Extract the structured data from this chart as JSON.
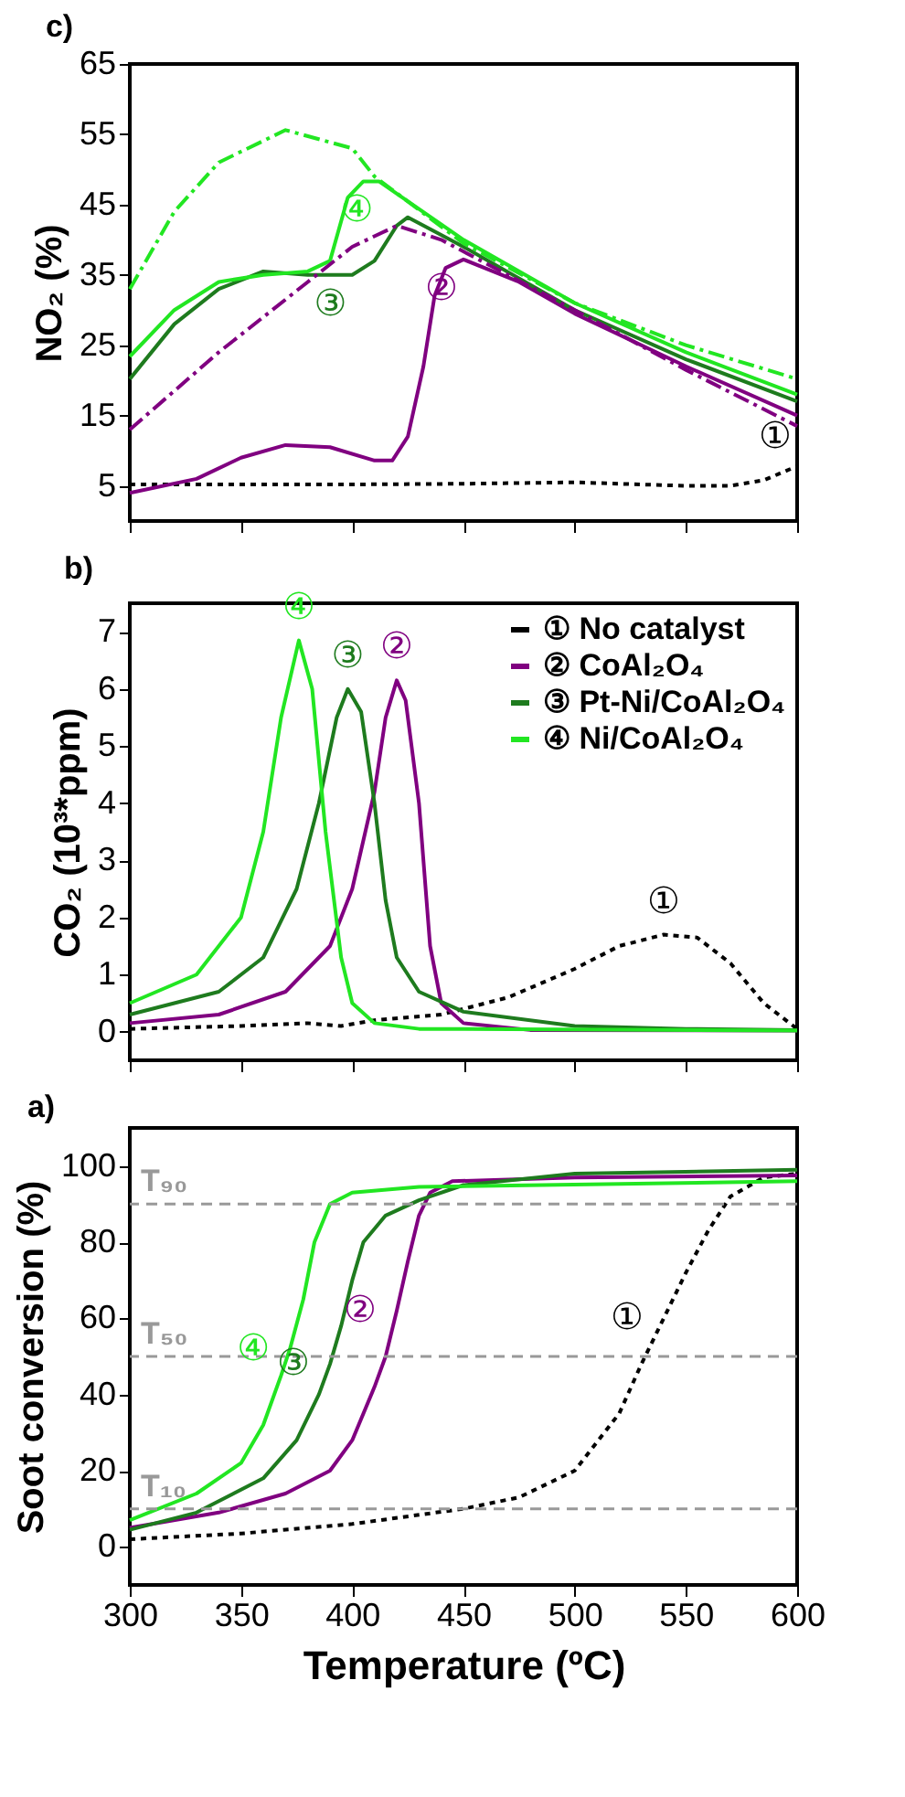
{
  "chart_data": [
    {
      "type": "line",
      "title": "c)",
      "ylabel": "NO₂ (%)",
      "xlim": [
        300,
        600
      ],
      "xticks": [
        300,
        350,
        400,
        450,
        500,
        550,
        600
      ],
      "ylim": [
        0,
        65
      ],
      "yticks": [
        5,
        15,
        25,
        35,
        45,
        55,
        65
      ],
      "tick_labels": "y",
      "series": [
        {
          "color": "#000000",
          "line_style": "dotted",
          "x": [
            300,
            350,
            400,
            450,
            500,
            550,
            570,
            585,
            600
          ],
          "values": [
            5.2,
            5.2,
            5.2,
            5.3,
            5.5,
            5.0,
            5.0,
            5.8,
            7.8
          ]
        },
        {
          "color": "#800080",
          "line_style": "solid",
          "x": [
            300,
            330,
            350,
            370,
            390,
            410,
            418,
            425,
            432,
            437,
            442,
            450,
            475,
            500,
            550,
            600
          ],
          "values": [
            4,
            6,
            9,
            10.8,
            10.5,
            8.6,
            8.6,
            12,
            22,
            32,
            36,
            37.2,
            34,
            29.5,
            22,
            15
          ]
        },
        {
          "color": "#1e7b1e",
          "line_style": "solid",
          "x": [
            300,
            320,
            340,
            360,
            380,
            400,
            410,
            420,
            425,
            450,
            500,
            550,
            600
          ],
          "values": [
            20.2,
            28,
            33,
            35.5,
            35,
            35,
            37,
            42,
            43.2,
            39,
            30,
            23,
            17
          ]
        },
        {
          "color": "#22e622",
          "line_style": "solid",
          "x": [
            300,
            320,
            340,
            360,
            380,
            390,
            398,
            405,
            412,
            450,
            500,
            550,
            600
          ],
          "values": [
            23.4,
            30,
            34,
            35,
            35.5,
            37,
            46,
            48.3,
            48.3,
            40,
            31,
            24,
            18
          ]
        },
        {
          "color": "#22e622",
          "line_style": "dashed",
          "x": [
            300,
            320,
            340,
            370,
            400,
            410,
            450,
            500,
            550,
            600
          ],
          "values": [
            33,
            44,
            51,
            55.6,
            53,
            49,
            39.5,
            31,
            25,
            20.2
          ]
        },
        {
          "color": "#800080",
          "line_style": "dashed",
          "x": [
            300,
            340,
            380,
            400,
            420,
            440,
            470,
            500,
            550,
            600
          ],
          "values": [
            13,
            24,
            34,
            39,
            42,
            40,
            35,
            30,
            21.5,
            13.5
          ]
        }
      ],
      "annotations": [
        {
          "text": "①",
          "x": 600,
          "y": 7.8
        },
        {
          "text": "②",
          "x": 450,
          "y": 37.2
        },
        {
          "text": "③",
          "x": 400,
          "y": 35
        },
        {
          "text": "④",
          "x": 412,
          "y": 48.3
        }
      ]
    },
    {
      "type": "line",
      "title": "b)",
      "ylabel": "CO₂ (10³*ppm)",
      "xlim": [
        300,
        600
      ],
      "xticks": [
        300,
        350,
        400,
        450,
        500,
        550,
        600
      ],
      "ylim": [
        -0.5,
        7.5
      ],
      "yticks": [
        0,
        1,
        2,
        3,
        4,
        5,
        6,
        7
      ],
      "tick_labels": "y",
      "legend": "top right",
      "series": [
        {
          "name": "① No catalyst",
          "color": "#000000",
          "line_style": "dotted",
          "x": [
            300,
            350,
            380,
            395,
            410,
            440,
            470,
            500,
            520,
            540,
            555,
            570,
            585,
            600
          ],
          "values": [
            0.05,
            0.1,
            0.15,
            0.1,
            0.2,
            0.3,
            0.6,
            1.1,
            1.5,
            1.7,
            1.65,
            1.2,
            0.5,
            0.05
          ]
        },
        {
          "name": "② CoAl₂O₄",
          "color": "#800080",
          "line_style": "solid",
          "x": [
            300,
            340,
            370,
            390,
            400,
            410,
            415,
            420,
            424,
            430,
            435,
            440,
            450,
            480,
            600
          ],
          "values": [
            0.15,
            0.3,
            0.7,
            1.5,
            2.5,
            4.2,
            5.5,
            6.15,
            5.8,
            4,
            1.5,
            0.5,
            0.15,
            0.03,
            0.02
          ]
        },
        {
          "name": "③ Pt-Ni/CoAl₂O₄",
          "color": "#1e7b1e",
          "line_style": "solid",
          "x": [
            300,
            340,
            360,
            375,
            385,
            393,
            398,
            404,
            410,
            415,
            420,
            430,
            450,
            500,
            550,
            600
          ],
          "values": [
            0.3,
            0.7,
            1.3,
            2.5,
            4,
            5.5,
            6.0,
            5.6,
            4,
            2.3,
            1.3,
            0.7,
            0.35,
            0.1,
            0.05,
            0.03
          ]
        },
        {
          "name": "④ Ni/CoAl₂O₄",
          "color": "#22e622",
          "line_style": "solid",
          "x": [
            300,
            330,
            350,
            360,
            368,
            376,
            382,
            388,
            395,
            400,
            410,
            430,
            600
          ],
          "values": [
            0.5,
            1,
            2,
            3.5,
            5.5,
            6.85,
            6,
            3.5,
            1.3,
            0.5,
            0.15,
            0.05,
            0.02
          ]
        }
      ],
      "annotations": [
        {
          "text": "①",
          "x": 540,
          "y": 1.7
        },
        {
          "text": "②",
          "x": 420,
          "y": 6.15
        },
        {
          "text": "③",
          "x": 398,
          "y": 6.0
        },
        {
          "text": "④",
          "x": 376,
          "y": 6.85
        }
      ]
    },
    {
      "type": "line",
      "title": "a)",
      "xlabel": "Temperature (ºC)",
      "ylabel": "Soot conversion (%)",
      "xlim": [
        300,
        600
      ],
      "xticks": [
        300,
        350,
        400,
        450,
        500,
        550,
        600
      ],
      "ylim": [
        -10,
        110
      ],
      "yticks": [
        0,
        20,
        40,
        60,
        80,
        100
      ],
      "series": [
        {
          "color": "#000000",
          "line_style": "dotted",
          "x": [
            300,
            350,
            400,
            450,
            475,
            500,
            520,
            530,
            540,
            550,
            560,
            570,
            585,
            600
          ],
          "values": [
            2,
            3.5,
            6,
            10,
            13,
            20,
            35,
            48,
            60,
            72,
            83,
            92,
            97,
            98
          ]
        },
        {
          "color": "#800080",
          "line_style": "solid",
          "x": [
            300,
            340,
            370,
            390,
            400,
            410,
            415,
            420,
            425,
            430,
            435,
            445,
            500,
            600
          ],
          "values": [
            5,
            9,
            14,
            20,
            28,
            42,
            50,
            62,
            75,
            87,
            93,
            96,
            97,
            97.5
          ]
        },
        {
          "color": "#1e7b1e",
          "line_style": "solid",
          "x": [
            300,
            330,
            360,
            375,
            385,
            390,
            395,
            400,
            405,
            415,
            430,
            450,
            500,
            600
          ],
          "values": [
            4.5,
            9,
            18,
            28,
            40,
            48,
            58,
            70,
            80,
            87,
            91,
            95,
            98,
            99
          ]
        },
        {
          "color": "#22e622",
          "line_style": "solid",
          "x": [
            300,
            330,
            350,
            360,
            368,
            372,
            378,
            383,
            390,
            400,
            430,
            600
          ],
          "values": [
            7,
            14,
            22,
            32,
            45,
            52,
            65,
            80,
            90,
            93,
            94.5,
            96
          ]
        }
      ],
      "ref_lines": [
        {
          "axis": "y",
          "value": 90,
          "label": "T₉₀",
          "color": "#999999",
          "line_style": "dashed"
        },
        {
          "axis": "y",
          "value": 50,
          "label": "T₅₀",
          "color": "#999999",
          "line_style": "dashed"
        },
        {
          "axis": "y",
          "value": 10,
          "label": "T₁₀",
          "color": "#999999",
          "line_style": "dashed"
        }
      ],
      "annotations": [
        {
          "text": "①",
          "x": 540,
          "y": 60
        },
        {
          "text": "②",
          "x": 420,
          "y": 62
        },
        {
          "text": "③",
          "x": 390,
          "y": 48
        },
        {
          "text": "④",
          "x": 372,
          "y": 52
        }
      ]
    }
  ]
}
